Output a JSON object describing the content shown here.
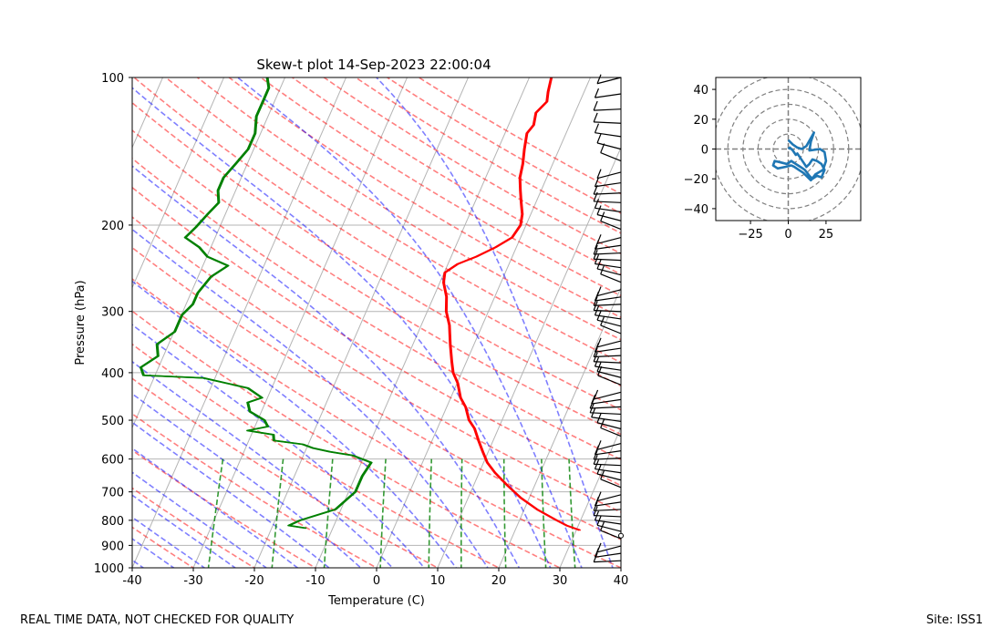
{
  "chart_data": [
    {
      "type": "line",
      "subtype": "skew-t",
      "title": "Skew-t plot 14-Sep-2023 22:00:04",
      "xlabel": "Temperature (C)",
      "ylabel": "Pressure (hPa)",
      "xlim": [
        -40,
        40
      ],
      "ylim": [
        1000,
        100
      ],
      "xticks": [
        -40,
        -30,
        -20,
        -10,
        0,
        10,
        20,
        30,
        40
      ],
      "yticks": [
        100,
        200,
        300,
        400,
        500,
        600,
        700,
        800,
        900,
        1000
      ],
      "skew_deg_per_decade": 35,
      "series": [
        {
          "name": "Temperature",
          "color": "#ff0000",
          "points": [
            [
              838,
              30.5
            ],
            [
              820,
              28
            ],
            [
              800,
              26
            ],
            [
              760,
              22
            ],
            [
              720,
              18.5
            ],
            [
              680,
              15.5
            ],
            [
              640,
              12.5
            ],
            [
              610,
              10.5
            ],
            [
              580,
              9
            ],
            [
              550,
              7.5
            ],
            [
              520,
              6
            ],
            [
              500,
              4.5
            ],
            [
              470,
              3
            ],
            [
              450,
              1.5
            ],
            [
              420,
              0
            ],
            [
              400,
              -1.5
            ],
            [
              380,
              -2.5
            ],
            [
              350,
              -4
            ],
            [
              320,
              -5.5
            ],
            [
              300,
              -7
            ],
            [
              280,
              -8
            ],
            [
              262,
              -9.5
            ],
            [
              250,
              -10
            ],
            [
              240,
              -8.5
            ],
            [
              232,
              -6
            ],
            [
              222,
              -3.5
            ],
            [
              212,
              -1.5
            ],
            [
              200,
              -1
            ],
            [
              190,
              -1.5
            ],
            [
              180,
              -2.5
            ],
            [
              170,
              -3.5
            ],
            [
              160,
              -4.5
            ],
            [
              150,
              -5
            ],
            [
              140,
              -5.8
            ],
            [
              130,
              -6.5
            ],
            [
              125,
              -6
            ],
            [
              118,
              -6.5
            ],
            [
              112,
              -5.5
            ],
            [
              107,
              -6
            ],
            [
              100,
              -6.5
            ]
          ]
        },
        {
          "name": "Dewpoint",
          "color": "#008000",
          "points": [
            [
              830,
              -14.5
            ],
            [
              820,
              -17.5
            ],
            [
              800,
              -16
            ],
            [
              760,
              -11
            ],
            [
              700,
              -9
            ],
            [
              650,
              -9
            ],
            [
              610,
              -8.5
            ],
            [
              590,
              -12
            ],
            [
              580,
              -16
            ],
            [
              570,
              -19
            ],
            [
              560,
              -21
            ],
            [
              550,
              -26
            ],
            [
              535,
              -26.5
            ],
            [
              525,
              -31
            ],
            [
              515,
              -28
            ],
            [
              500,
              -29
            ],
            [
              480,
              -32
            ],
            [
              460,
              -33
            ],
            [
              450,
              -31
            ],
            [
              430,
              -34
            ],
            [
              410,
              -42
            ],
            [
              405,
              -52
            ],
            [
              390,
              -53
            ],
            [
              370,
              -51
            ],
            [
              350,
              -52
            ],
            [
              330,
              -50
            ],
            [
              305,
              -50
            ],
            [
              290,
              -49
            ],
            [
              275,
              -49
            ],
            [
              255,
              -48
            ],
            [
              242,
              -46
            ],
            [
              232,
              -50
            ],
            [
              222,
              -52
            ],
            [
              212,
              -55
            ],
            [
              202,
              -54
            ],
            [
              190,
              -53
            ],
            [
              180,
              -52
            ],
            [
              170,
              -53
            ],
            [
              160,
              -53
            ],
            [
              150,
              -52
            ],
            [
              140,
              -51
            ],
            [
              130,
              -51
            ],
            [
              120,
              -52
            ],
            [
              112,
              -52
            ],
            [
              105,
              -52
            ],
            [
              100,
              -53
            ]
          ]
        }
      ]
    },
    {
      "type": "line",
      "subtype": "hodograph",
      "title": "",
      "xlim": [
        -48,
        48
      ],
      "ylim": [
        -48,
        48
      ],
      "xticks": [
        -25,
        0,
        25
      ],
      "yticks": [
        40,
        20,
        0,
        -20,
        -40
      ],
      "rings": [
        10,
        20,
        30,
        40,
        50
      ],
      "series": [
        {
          "name": "Wind",
          "color": "#1f77b4",
          "u": [
            0,
            3,
            6,
            9,
            12,
            17,
            15,
            14,
            21,
            24,
            25,
            23,
            18,
            15,
            13,
            10,
            7,
            4,
            2,
            -2,
            -7,
            -10,
            -9,
            -5,
            -1,
            2,
            5,
            8,
            11,
            14,
            16,
            19,
            22,
            24,
            22,
            19,
            16,
            14,
            12,
            10,
            8,
            6,
            5,
            3,
            1,
            0
          ],
          "v": [
            6,
            3,
            1,
            0,
            2,
            11,
            5,
            -1,
            0,
            -2,
            -8,
            -14,
            -17,
            -21,
            -19,
            -16,
            -14,
            -12,
            -11,
            -12,
            -13,
            -11,
            -8,
            -9,
            -10,
            -8,
            -10,
            -12,
            -14,
            -18,
            -20,
            -18,
            -19,
            -14,
            -10,
            -8,
            -7,
            -10,
            -12,
            -9,
            -6,
            -3,
            -4,
            -1,
            1,
            0
          ]
        }
      ]
    }
  ],
  "footer": {
    "left": "REAL TIME DATA, NOT CHECKED FOR QUALITY",
    "right": "Site: ISS1"
  }
}
